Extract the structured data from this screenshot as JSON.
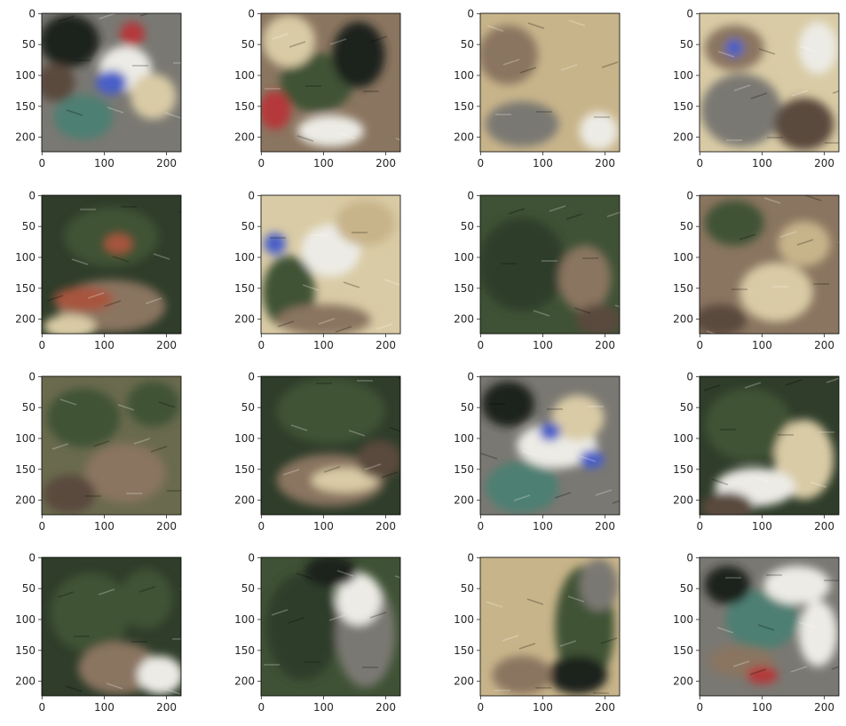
{
  "figure": {
    "panel_count": 16,
    "grid": {
      "rows": 4,
      "cols": 4
    }
  },
  "axes_template": {
    "x_ticks": [
      "0",
      "100",
      "200"
    ],
    "y_ticks": [
      "0",
      "50",
      "100",
      "150",
      "200"
    ],
    "x_range": [
      0,
      224
    ],
    "y_range": [
      0,
      224
    ],
    "tick_color": "#262626",
    "frame_color": "#000000"
  },
  "panels": [
    {
      "id": 1,
      "title": "",
      "x_ticks": [
        "0",
        "100",
        "200"
      ],
      "y_ticks": [
        "0",
        "50",
        "100",
        "150",
        "200"
      ]
    },
    {
      "id": 2,
      "title": "",
      "x_ticks": [
        "0",
        "100",
        "200"
      ],
      "y_ticks": [
        "0",
        "50",
        "100",
        "150",
        "200"
      ]
    },
    {
      "id": 3,
      "title": "",
      "x_ticks": [
        "0",
        "100",
        "200"
      ],
      "y_ticks": [
        "0",
        "50",
        "100",
        "150",
        "200"
      ]
    },
    {
      "id": 4,
      "title": "",
      "x_ticks": [
        "0",
        "100",
        "200"
      ],
      "y_ticks": [
        "0",
        "50",
        "100",
        "150",
        "200"
      ]
    },
    {
      "id": 5,
      "title": "",
      "x_ticks": [
        "0",
        "100",
        "200"
      ],
      "y_ticks": [
        "0",
        "50",
        "100",
        "150",
        "200"
      ]
    },
    {
      "id": 6,
      "title": "",
      "x_ticks": [
        "0",
        "100",
        "200"
      ],
      "y_ticks": [
        "0",
        "50",
        "100",
        "150",
        "200"
      ]
    },
    {
      "id": 7,
      "title": "",
      "x_ticks": [
        "0",
        "100",
        "200"
      ],
      "y_ticks": [
        "0",
        "50",
        "100",
        "150",
        "200"
      ]
    },
    {
      "id": 8,
      "title": "",
      "x_ticks": [
        "0",
        "100",
        "200"
      ],
      "y_ticks": [
        "0",
        "50",
        "100",
        "150",
        "200"
      ]
    },
    {
      "id": 9,
      "title": "",
      "x_ticks": [
        "0",
        "100",
        "200"
      ],
      "y_ticks": [
        "0",
        "50",
        "100",
        "150",
        "200"
      ]
    },
    {
      "id": 10,
      "title": "",
      "x_ticks": [
        "0",
        "100",
        "200"
      ],
      "y_ticks": [
        "0",
        "50",
        "100",
        "150",
        "200"
      ]
    },
    {
      "id": 11,
      "title": "",
      "x_ticks": [
        "0",
        "100",
        "200"
      ],
      "y_ticks": [
        "0",
        "50",
        "100",
        "150",
        "200"
      ]
    },
    {
      "id": 12,
      "title": "",
      "x_ticks": [
        "0",
        "100",
        "200"
      ],
      "y_ticks": [
        "0",
        "50",
        "100",
        "150",
        "200"
      ]
    },
    {
      "id": 13,
      "title": "",
      "x_ticks": [
        "0",
        "100",
        "200"
      ],
      "y_ticks": [
        "0",
        "50",
        "100",
        "150",
        "200"
      ]
    },
    {
      "id": 14,
      "title": "",
      "x_ticks": [
        "0",
        "100",
        "200"
      ],
      "y_ticks": [
        "0",
        "50",
        "100",
        "150",
        "200"
      ]
    },
    {
      "id": 15,
      "title": "",
      "x_ticks": [
        "0",
        "100",
        "200"
      ],
      "y_ticks": [
        "0",
        "50",
        "100",
        "150",
        "200"
      ]
    },
    {
      "id": 16,
      "title": "",
      "x_ticks": [
        "0",
        "100",
        "200"
      ],
      "y_ticks": [
        "0",
        "50",
        "100",
        "150",
        "200"
      ]
    }
  ],
  "palette": {
    "dark_green": "#2f3d2a",
    "forest": "#3f5235",
    "olive": "#6a6a4e",
    "sand": "#c8b48a",
    "pale_sand": "#d9cba5",
    "dirt": "#8a7560",
    "brown": "#5a4a3d",
    "teal": "#4e7f72",
    "gray": "#7a7872",
    "rust": "#a8553e",
    "white": "#ecebe5",
    "blue": "#4a5fc8",
    "red": "#b5383a",
    "dark": "#1f211d"
  }
}
